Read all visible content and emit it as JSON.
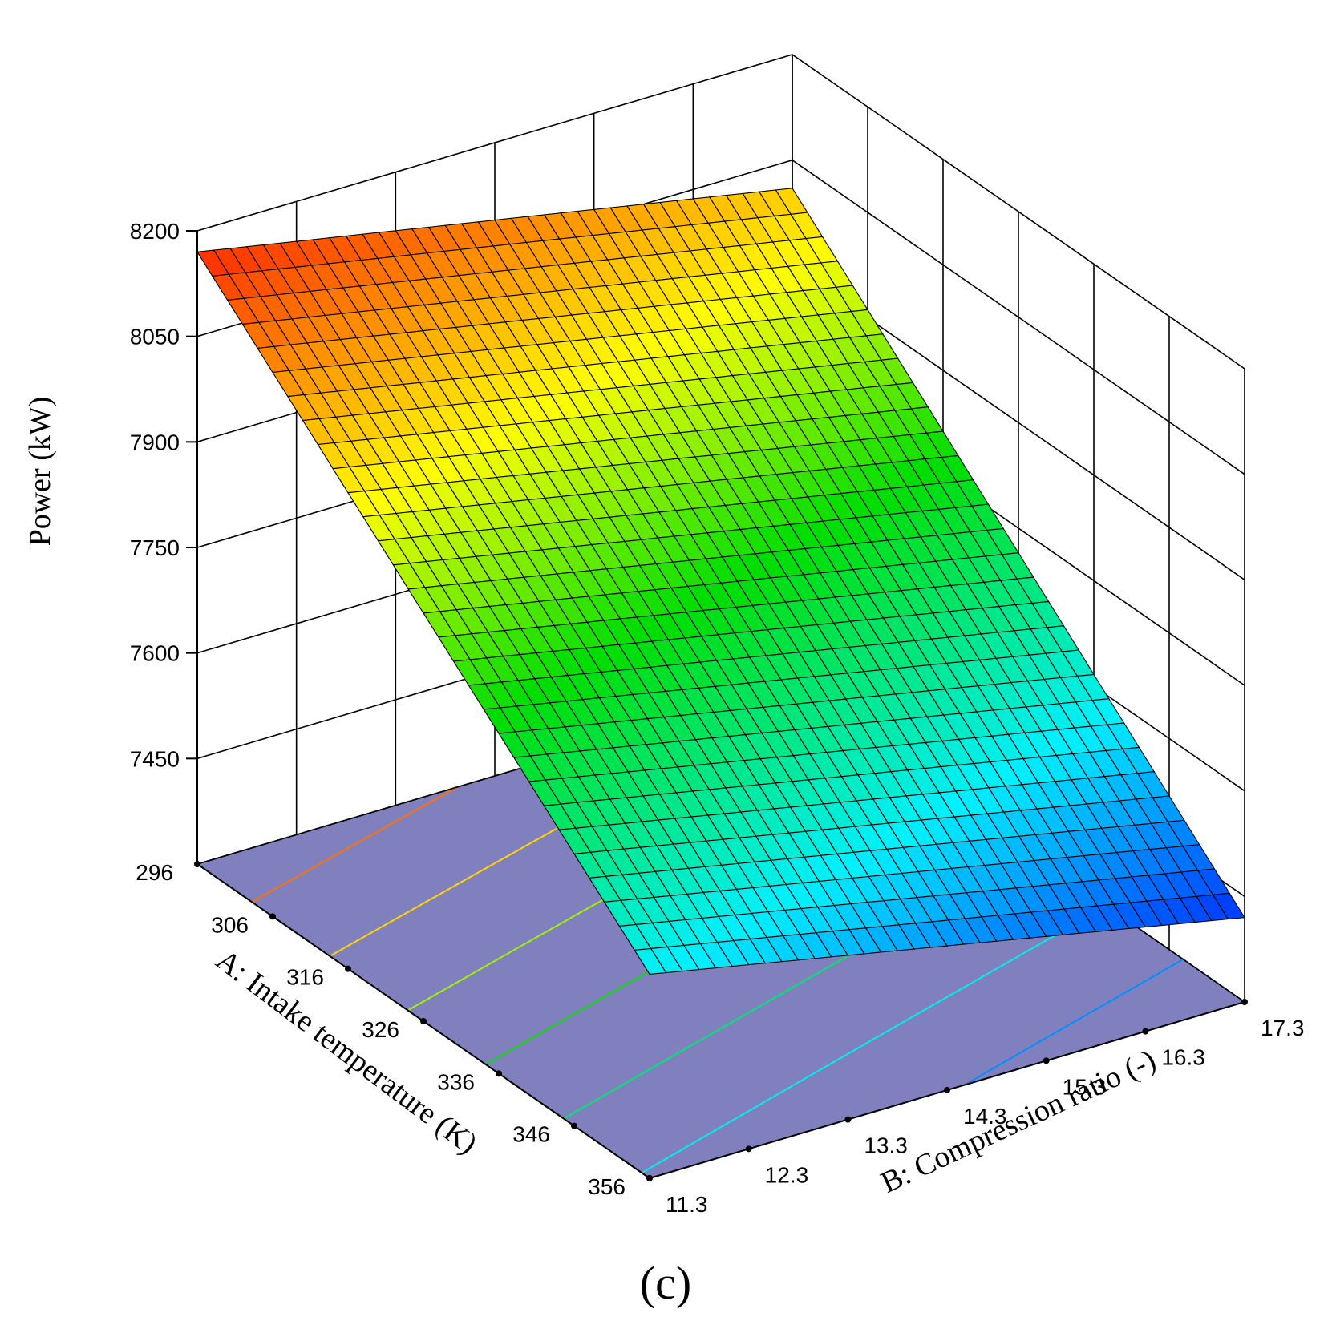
{
  "chart_data": {
    "type": "surface3d",
    "xlabel": "A: Intake temperature (K)",
    "ylabel": "B: Compression ratio (-)",
    "zlabel": "Power (kW)",
    "panel_label": "(c)",
    "x_ticks": [
      "296",
      "306",
      "316",
      "326",
      "336",
      "346",
      "356"
    ],
    "y_ticks": [
      "11.3",
      "12.3",
      "13.3",
      "14.3",
      "15.3",
      "16.3",
      "17.3"
    ],
    "z_ticks": [
      "7450",
      "7600",
      "7750",
      "7900",
      "8050",
      "8200"
    ],
    "xlim": [
      296,
      356
    ],
    "ylim": [
      11.3,
      17.3
    ],
    "zlim": [
      7300,
      8200
    ],
    "surface_corners": [
      {
        "x": 296,
        "y": 11.3,
        "z": 8170
      },
      {
        "x": 296,
        "y": 17.3,
        "z": 8010
      },
      {
        "x": 356,
        "y": 11.3,
        "z": 7590
      },
      {
        "x": 356,
        "y": 17.3,
        "z": 7420
      }
    ],
    "contour_levels": [
      8100,
      8000,
      7900,
      7800,
      7700,
      7600,
      7500
    ],
    "colors": {
      "floor": "#8080bf",
      "high": "#ff2a00",
      "mid": "#00dd00",
      "low": "#0033ff"
    }
  }
}
